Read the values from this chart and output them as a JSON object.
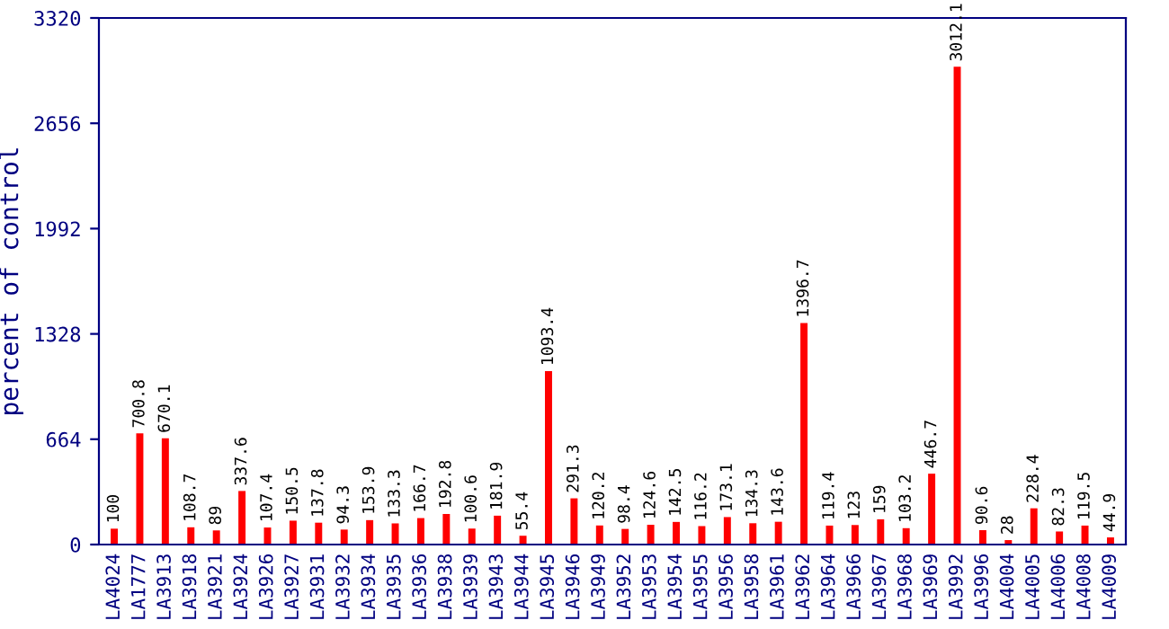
{
  "chart_data": {
    "type": "bar",
    "ylabel": "percent of control",
    "categories": [
      "LA4024",
      "LA1777",
      "LA3913",
      "LA3918",
      "LA3921",
      "LA3924",
      "LA3926",
      "LA3927",
      "LA3931",
      "LA3932",
      "LA3934",
      "LA3935",
      "LA3936",
      "LA3938",
      "LA3939",
      "LA3943",
      "LA3944",
      "LA3945",
      "LA3946",
      "LA3949",
      "LA3952",
      "LA3953",
      "LA3954",
      "LA3955",
      "LA3956",
      "LA3958",
      "LA3961",
      "LA3962",
      "LA3964",
      "LA3966",
      "LA3967",
      "LA3968",
      "LA3969",
      "LA3992",
      "LA3996",
      "LA4004",
      "LA4005",
      "LA4006",
      "LA4008",
      "LA4009"
    ],
    "values": [
      100,
      700.8,
      670.1,
      108.7,
      89,
      337.6,
      107.4,
      150.5,
      137.8,
      94.3,
      153.9,
      133.3,
      166.7,
      192.8,
      100.6,
      181.9,
      55.4,
      1093.4,
      291.3,
      120.2,
      98.4,
      124.6,
      142.5,
      116.2,
      173.1,
      134.3,
      143.6,
      1396.7,
      119.4,
      123,
      159,
      103.2,
      446.7,
      3012.1,
      90.6,
      28,
      228.4,
      82.3,
      119.5,
      44.9
    ],
    "color": "#ff0000",
    "data_labels": true,
    "ylim": [
      0,
      3320
    ],
    "yticks": [
      0,
      664,
      1328,
      1992,
      2656,
      3320
    ],
    "grid": false
  }
}
